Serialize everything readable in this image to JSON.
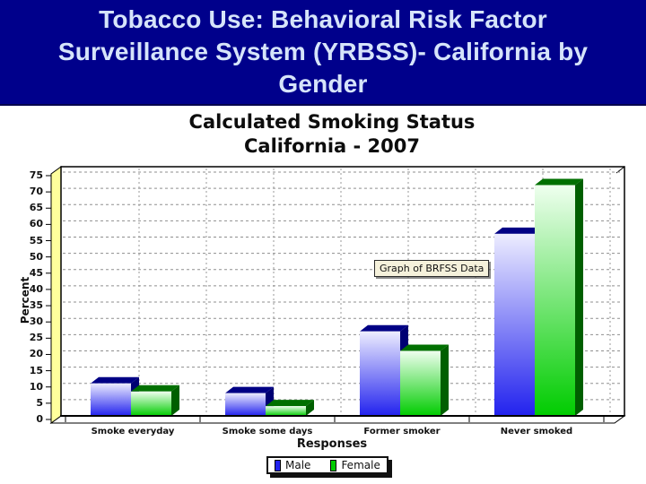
{
  "slide": {
    "title_line1": "Tobacco Use: Behavioral Risk Factor",
    "title_line2": "Surveillance System (YRBSS)- California by",
    "title_line3": "Gender",
    "title_bg_color": "#00008B",
    "title_text_color": "#D6E4FA"
  },
  "chart_data": {
    "type": "bar",
    "title": "Calculated Smoking Status",
    "subtitle": "California - 2007",
    "xlabel": "Responses",
    "ylabel": "Percent",
    "ylim": [
      0,
      75
    ],
    "ytick_step": 5,
    "grid": true,
    "style": "3d-bars",
    "wall_color": "#FFFF9C",
    "legend_position": "bottom",
    "categories": [
      "Smoke everyday",
      "Smoke some days",
      "Former smoker",
      "Never smoked"
    ],
    "series": [
      {
        "name": "Male",
        "color": "#2222EE",
        "values": [
          10,
          7,
          26,
          56
        ]
      },
      {
        "name": "Female",
        "color": "#00CC00",
        "values": [
          7.5,
          3,
          20,
          71
        ]
      }
    ],
    "annotation": "Graph of BRFSS Data"
  }
}
